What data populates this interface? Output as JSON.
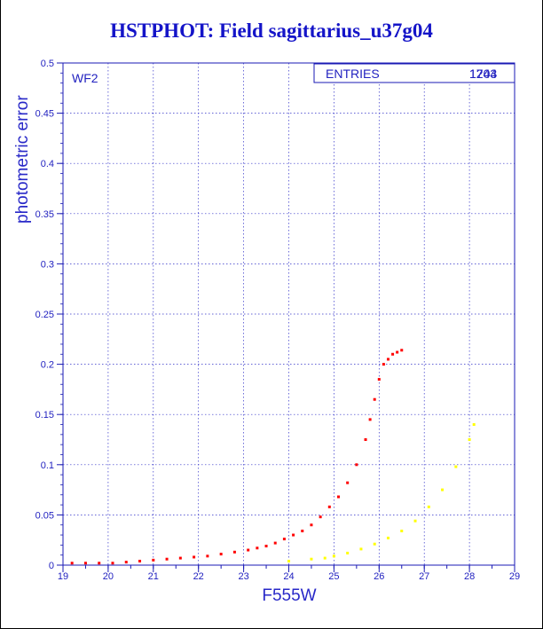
{
  "chart_data": {
    "type": "scatter",
    "title": "HSTPHOT: Field sagittarius_u37g04",
    "xlabel": "F555W",
    "ylabel": "photometric error",
    "xlim": [
      19,
      29
    ],
    "ylim": [
      0,
      0.5
    ],
    "xticks": [
      "19",
      "20",
      "21",
      "22",
      "23",
      "24",
      "25",
      "26",
      "27",
      "28",
      "29"
    ],
    "yticks": [
      "0",
      "0.05",
      "0.1",
      "0.15",
      "0.2",
      "0.25",
      "0.3",
      "0.35",
      "0.4",
      "0.45",
      "0.5"
    ],
    "grid": true,
    "annotation": "WF2",
    "stats_box": {
      "label": "ENTRIES",
      "values": [
        "1204",
        "1743"
      ]
    },
    "series": [
      {
        "color": "#ff0000",
        "points": [
          [
            19.2,
            0.002
          ],
          [
            19.5,
            0.002
          ],
          [
            19.8,
            0.002
          ],
          [
            20.1,
            0.002
          ],
          [
            20.4,
            0.003
          ],
          [
            20.7,
            0.004
          ],
          [
            21.0,
            0.005
          ],
          [
            21.3,
            0.006
          ],
          [
            21.6,
            0.007
          ],
          [
            21.9,
            0.008
          ],
          [
            22.2,
            0.009
          ],
          [
            22.5,
            0.011
          ],
          [
            22.8,
            0.013
          ],
          [
            23.1,
            0.015
          ],
          [
            23.3,
            0.017
          ],
          [
            23.5,
            0.019
          ],
          [
            23.7,
            0.022
          ],
          [
            23.9,
            0.026
          ],
          [
            24.1,
            0.03
          ],
          [
            24.3,
            0.034
          ],
          [
            24.5,
            0.04
          ],
          [
            24.7,
            0.048
          ],
          [
            24.9,
            0.058
          ],
          [
            25.1,
            0.068
          ],
          [
            25.3,
            0.082
          ],
          [
            25.5,
            0.1
          ],
          [
            25.7,
            0.125
          ],
          [
            25.8,
            0.145
          ],
          [
            25.9,
            0.165
          ],
          [
            26.0,
            0.185
          ],
          [
            26.1,
            0.2
          ],
          [
            26.2,
            0.205
          ],
          [
            26.3,
            0.21
          ],
          [
            26.4,
            0.212
          ],
          [
            26.5,
            0.214
          ]
        ]
      },
      {
        "color": "#ffff00",
        "points": [
          [
            24.0,
            0.004
          ],
          [
            24.5,
            0.006
          ],
          [
            24.8,
            0.007
          ],
          [
            25.0,
            0.009
          ],
          [
            25.3,
            0.012
          ],
          [
            25.6,
            0.016
          ],
          [
            25.9,
            0.021
          ],
          [
            26.2,
            0.027
          ],
          [
            26.5,
            0.034
          ],
          [
            26.8,
            0.044
          ],
          [
            27.1,
            0.058
          ],
          [
            27.4,
            0.075
          ],
          [
            27.7,
            0.098
          ],
          [
            28.0,
            0.125
          ],
          [
            28.1,
            0.14
          ]
        ]
      }
    ]
  }
}
